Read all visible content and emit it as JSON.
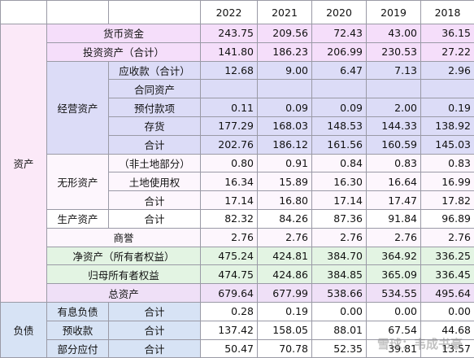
{
  "table": {
    "years": [
      "2022",
      "2021",
      "2020",
      "2019",
      "2018"
    ],
    "sections": [
      {
        "label": "资产",
        "rows": [
          {
            "label": "货币资金",
            "values": [
              "243.75",
              "209.56",
              "72.43",
              "43.00",
              "36.15"
            ]
          },
          {
            "label": "投资资产（合计）",
            "values": [
              "141.80",
              "186.23",
              "206.99",
              "230.53",
              "27.22"
            ]
          },
          {
            "group": "经营资产",
            "items": [
              {
                "label": "应收款（合计）",
                "values": [
                  "12.68",
                  "9.00",
                  "6.47",
                  "7.13",
                  "2.96"
                ]
              },
              {
                "label": "合同资产",
                "values": [
                  null,
                  null,
                  null,
                  null,
                  null
                ]
              },
              {
                "label": "预付款项",
                "values": [
                  "0.11",
                  "0.09",
                  "0.09",
                  "2.00",
                  "0.19"
                ]
              },
              {
                "label": "存货",
                "values": [
                  "177.29",
                  "168.03",
                  "148.53",
                  "144.33",
                  "138.92"
                ]
              },
              {
                "label": "合计",
                "values": [
                  "202.76",
                  "186.12",
                  "161.56",
                  "160.59",
                  "145.03"
                ]
              }
            ]
          },
          {
            "group": "无形资产",
            "items": [
              {
                "label": "（非土地部分）",
                "values": [
                  "0.80",
                  "0.91",
                  "0.84",
                  "0.83",
                  "0.83"
                ]
              },
              {
                "label": "土地使用权",
                "values": [
                  "16.34",
                  "15.89",
                  "16.30",
                  "16.64",
                  "16.99"
                ]
              },
              {
                "label": "合计",
                "values": [
                  "17.14",
                  "16.80",
                  "17.14",
                  "17.47",
                  "17.82"
                ]
              }
            ]
          },
          {
            "group": "生产资产",
            "items": [
              {
                "label": "合计",
                "values": [
                  "82.32",
                  "84.26",
                  "87.36",
                  "91.84",
                  "96.89"
                ]
              }
            ]
          },
          {
            "label": "商誉",
            "values": [
              "2.76",
              "2.76",
              "2.76",
              "2.76",
              "2.76"
            ]
          },
          {
            "label": "净资产（所有者权益）",
            "values": [
              "475.24",
              "424.81",
              "384.70",
              "364.92",
              "336.25"
            ]
          },
          {
            "label": "归母所有者权益",
            "values": [
              "474.75",
              "424.86",
              "384.85",
              "365.09",
              "336.45"
            ]
          },
          {
            "label": "总资产",
            "values": [
              "679.64",
              "677.99",
              "538.66",
              "534.55",
              "495.64"
            ]
          }
        ]
      },
      {
        "label": "负债",
        "rows": [
          {
            "group": "有息负债",
            "items": [
              {
                "label": "合计",
                "values": [
                  "0.28",
                  "0.19",
                  "0.00",
                  "0.00",
                  "0.00"
                ]
              }
            ]
          },
          {
            "group": "预收款",
            "items": [
              {
                "label": "合计",
                "values": [
                  "137.42",
                  "158.05",
                  "88.01",
                  "67.54",
                  "44.68"
                ]
              }
            ]
          },
          {
            "group": "部分应付",
            "items": [
              {
                "label": "合计",
                "values": [
                  "50.47",
                  "70.78",
                  "52.35",
                  "39.81",
                  "13.57"
                ]
              }
            ]
          }
        ]
      }
    ],
    "watermark": "雪球：韦成书豪"
  }
}
